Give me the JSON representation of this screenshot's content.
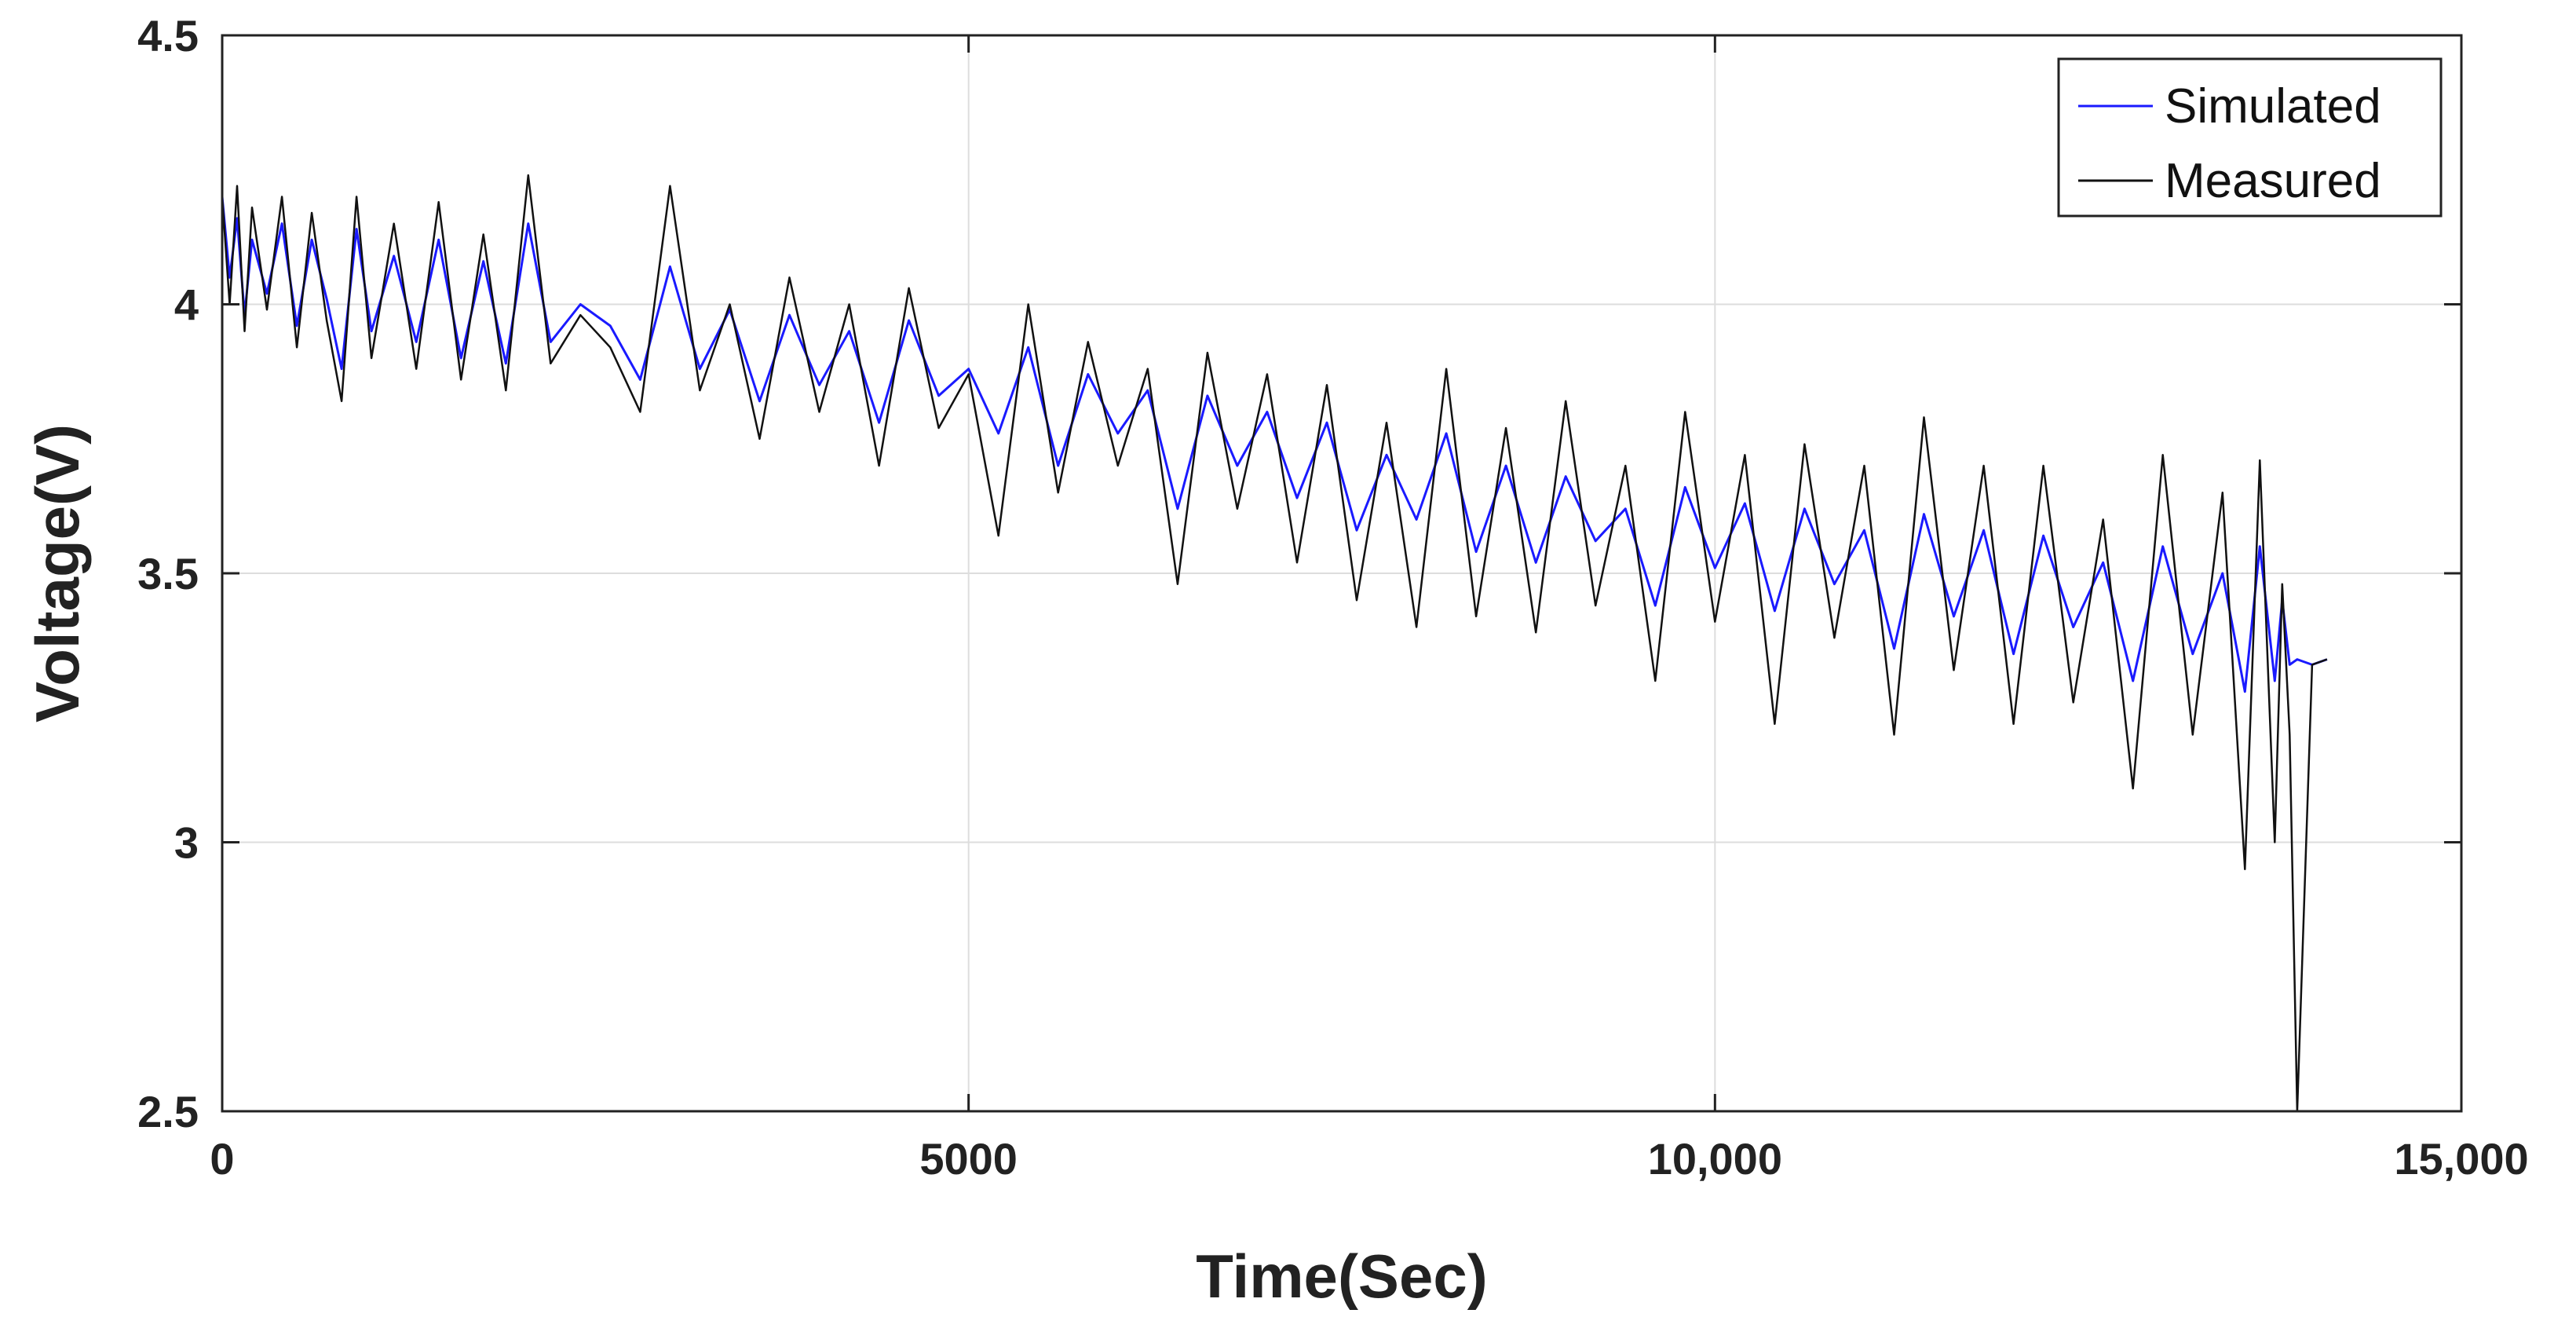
{
  "chart_data": {
    "type": "line",
    "title": "",
    "xlabel": "Time(Sec)",
    "ylabel": "Voltage(V)",
    "xlim": [
      0,
      15000
    ],
    "ylim": [
      2.5,
      4.5
    ],
    "x_ticks": [
      0,
      5000,
      10000,
      15000
    ],
    "x_tick_labels": [
      "0",
      "5000",
      "10,000",
      "15,000"
    ],
    "y_ticks": [
      2.5,
      3,
      3.5,
      4,
      4.5
    ],
    "y_tick_labels": [
      "2.5",
      "3",
      "3.5",
      "4",
      "4.5"
    ],
    "grid": true,
    "legend_position": "top-right",
    "series": [
      {
        "name": "Simulated",
        "color": "#1a1aff",
        "x": [
          0,
          50,
          100,
          150,
          200,
          300,
          400,
          500,
          600,
          700,
          800,
          900,
          1000,
          1150,
          1300,
          1450,
          1600,
          1750,
          1900,
          2050,
          2200,
          2400,
          2600,
          2800,
          3000,
          3200,
          3400,
          3600,
          3800,
          4000,
          4200,
          4400,
          4600,
          4800,
          5000,
          5200,
          5400,
          5600,
          5800,
          6000,
          6200,
          6400,
          6600,
          6800,
          7000,
          7200,
          7400,
          7600,
          7800,
          8000,
          8200,
          8400,
          8600,
          8800,
          9000,
          9200,
          9400,
          9600,
          9800,
          10000,
          10200,
          10400,
          10600,
          10800,
          11000,
          11200,
          11400,
          11600,
          11800,
          12000,
          12200,
          12400,
          12600,
          12800,
          13000,
          13200,
          13400,
          13550,
          13650,
          13750,
          13800,
          13850,
          13900,
          14000,
          14100
        ],
        "y": [
          4.2,
          4.05,
          4.16,
          3.98,
          4.12,
          4.02,
          4.15,
          3.96,
          4.12,
          4.01,
          3.88,
          4.14,
          3.95,
          4.09,
          3.93,
          4.12,
          3.9,
          4.08,
          3.89,
          4.15,
          3.93,
          4.0,
          3.96,
          3.86,
          4.07,
          3.88,
          3.99,
          3.82,
          3.98,
          3.85,
          3.95,
          3.78,
          3.97,
          3.83,
          3.88,
          3.76,
          3.92,
          3.7,
          3.87,
          3.76,
          3.84,
          3.62,
          3.83,
          3.7,
          3.8,
          3.64,
          3.78,
          3.58,
          3.72,
          3.6,
          3.76,
          3.54,
          3.7,
          3.52,
          3.68,
          3.56,
          3.62,
          3.44,
          3.66,
          3.51,
          3.63,
          3.43,
          3.62,
          3.48,
          3.58,
          3.36,
          3.61,
          3.42,
          3.58,
          3.35,
          3.57,
          3.4,
          3.52,
          3.3,
          3.55,
          3.35,
          3.5,
          3.28,
          3.55,
          3.3,
          3.45,
          3.33,
          3.34,
          3.33,
          3.34
        ]
      },
      {
        "name": "Measured",
        "color": "#111111",
        "x": [
          0,
          50,
          100,
          150,
          200,
          300,
          400,
          500,
          600,
          700,
          800,
          900,
          1000,
          1150,
          1300,
          1450,
          1600,
          1750,
          1900,
          2050,
          2200,
          2400,
          2600,
          2800,
          3000,
          3200,
          3400,
          3600,
          3800,
          4000,
          4200,
          4400,
          4600,
          4800,
          5000,
          5200,
          5400,
          5600,
          5800,
          6000,
          6200,
          6400,
          6600,
          6800,
          7000,
          7200,
          7400,
          7600,
          7800,
          8000,
          8200,
          8400,
          8600,
          8800,
          9000,
          9200,
          9400,
          9600,
          9800,
          10000,
          10200,
          10400,
          10600,
          10800,
          11000,
          11200,
          11400,
          11600,
          11800,
          12000,
          12200,
          12400,
          12600,
          12800,
          13000,
          13200,
          13400,
          13550,
          13650,
          13750,
          13800,
          13850,
          13900,
          14000,
          14100
        ],
        "y": [
          4.2,
          4.0,
          4.22,
          3.95,
          4.18,
          3.99,
          4.2,
          3.92,
          4.17,
          3.97,
          3.82,
          4.2,
          3.9,
          4.15,
          3.88,
          4.19,
          3.86,
          4.13,
          3.84,
          4.24,
          3.89,
          3.98,
          3.92,
          3.8,
          4.22,
          3.84,
          4.0,
          3.75,
          4.05,
          3.8,
          4.0,
          3.7,
          4.03,
          3.77,
          3.87,
          3.57,
          4.0,
          3.65,
          3.93,
          3.7,
          3.88,
          3.48,
          3.91,
          3.62,
          3.87,
          3.52,
          3.85,
          3.45,
          3.78,
          3.4,
          3.88,
          3.42,
          3.77,
          3.39,
          3.82,
          3.44,
          3.7,
          3.3,
          3.8,
          3.41,
          3.72,
          3.22,
          3.74,
          3.38,
          3.7,
          3.2,
          3.79,
          3.32,
          3.7,
          3.22,
          3.7,
          3.26,
          3.6,
          3.1,
          3.72,
          3.2,
          3.65,
          2.95,
          3.71,
          3.0,
          3.48,
          3.2,
          2.5,
          3.33,
          3.34
        ]
      }
    ]
  }
}
